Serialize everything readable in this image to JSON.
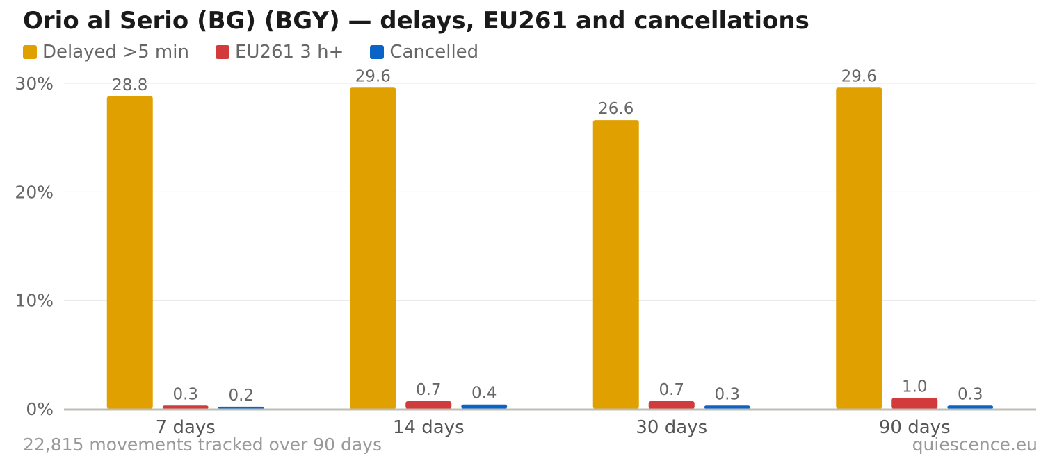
{
  "title": "Orio al Serio (BG) (BGY) — delays, EU261 and cancellations",
  "footer": {
    "left": "22,815 movements tracked over 90 days",
    "right": "quiescence.eu"
  },
  "chart_data": {
    "type": "bar",
    "title": "Orio al Serio (BG) (BGY) — delays, EU261 and cancellations",
    "categories": [
      "7 days",
      "14 days",
      "30 days",
      "90 days"
    ],
    "series": [
      {
        "name": "Delayed >5 min",
        "color": "#E0A000",
        "values": [
          28.8,
          29.6,
          26.6,
          29.6
        ]
      },
      {
        "name": "EU261 3 h+",
        "color": "#D13B3B",
        "values": [
          0.3,
          0.7,
          0.7,
          1.0
        ]
      },
      {
        "name": "Cancelled",
        "color": "#0A64C8",
        "values": [
          0.2,
          0.4,
          0.3,
          0.3
        ]
      }
    ],
    "ylim": [
      0,
      30
    ],
    "yticks": [
      "0%",
      "10%",
      "20%",
      "30%"
    ],
    "ytick_values": [
      0,
      10,
      20,
      30
    ],
    "grid": true,
    "legend": "top-left",
    "data_labels": true
  }
}
